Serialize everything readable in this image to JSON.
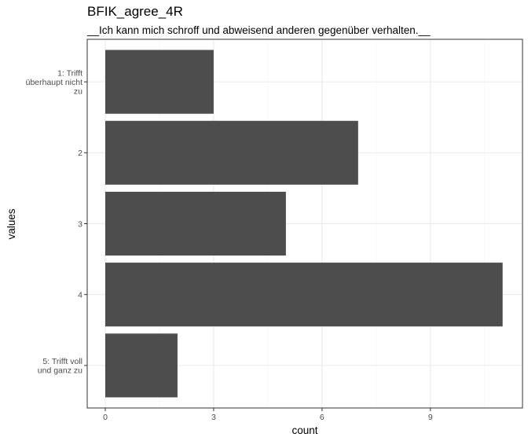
{
  "chart_data": {
    "type": "bar",
    "orientation": "horizontal",
    "title": "BFIK_agree_4R",
    "subtitle": "__Ich kann mich schroff und abweisend anderen gegenüber verhalten.__",
    "xlabel": "count",
    "ylabel": "values",
    "categories": [
      [
        "1: Trifft",
        "überhaupt nicht",
        "zu"
      ],
      [
        "2"
      ],
      [
        "3"
      ],
      [
        "4"
      ],
      [
        "5: Trifft voll",
        "und ganz zu"
      ]
    ],
    "values": [
      3,
      7,
      5,
      11,
      2
    ],
    "xlim": [
      -0.5,
      11.55
    ],
    "xticks": [
      0,
      3,
      6,
      9
    ],
    "grid": true,
    "legend": "none",
    "colors": {
      "bar": "#4d4d4d",
      "grid_major": "#ebebeb",
      "grid_minor": "#f5f5f5",
      "panel_border": "#333333",
      "tick_text": "#4d4d4d"
    }
  }
}
